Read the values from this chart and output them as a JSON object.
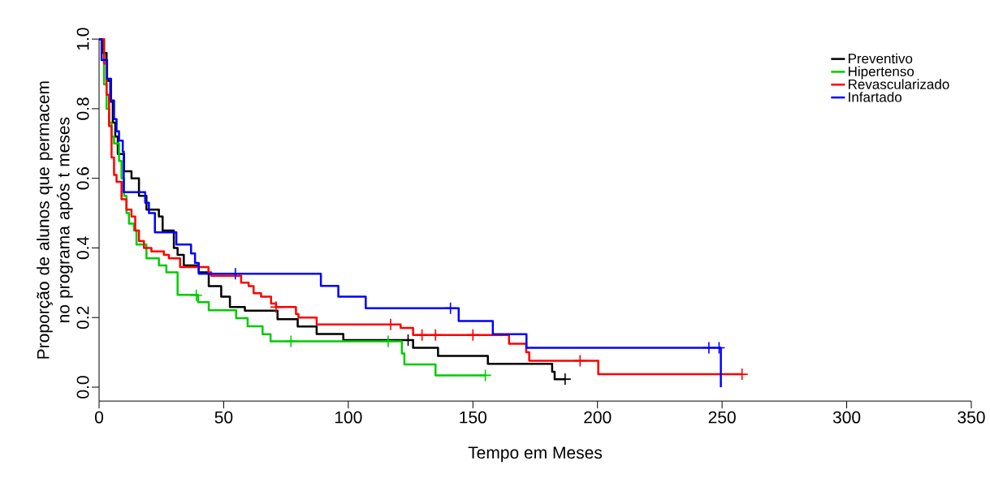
{
  "chart_data": {
    "type": "step",
    "xlabel": "Tempo em Meses",
    "ylabel": "Proporção de alunos que permacem no programa após t meses",
    "xlim": [
      0,
      350
    ],
    "xticks": [
      0,
      50,
      100,
      150,
      200,
      250,
      300,
      350
    ],
    "ylim": [
      -0.04,
      1.0
    ],
    "yticks": [
      {
        "value": 0,
        "label": "0.0"
      },
      {
        "value": 0.2,
        "label": "0.2"
      },
      {
        "value": 0.4,
        "label": "0.4"
      },
      {
        "value": 0.6,
        "label": "0.6"
      },
      {
        "value": 0.8,
        "label": "0.8"
      },
      {
        "value": 1.0,
        "label": "1.0"
      }
    ],
    "legend": "top right",
    "marker": "none",
    "series": [
      {
        "name": "Preventivo",
        "color": "#000000",
        "x": [
          0,
          1.5,
          3,
          4.5,
          5.5,
          6.5,
          7.5,
          10,
          13,
          16,
          19,
          24,
          25.5,
          30,
          31.5,
          34,
          40,
          44,
          49,
          52.5,
          58.5,
          71.6,
          79.7,
          87.3,
          98,
          126,
          136,
          156,
          181.8,
          182.8,
          187
        ],
        "values": [
          1.0,
          0.96,
          0.88,
          0.82,
          0.76,
          0.72,
          0.67,
          0.62,
          0.6,
          0.55,
          0.51,
          0.49,
          0.45,
          0.4,
          0.38,
          0.35,
          0.33,
          0.29,
          0.26,
          0.23,
          0.22,
          0.195,
          0.174,
          0.153,
          0.135,
          0.113,
          0.09,
          0.067,
          0.044,
          0.023,
          0.023
        ]
      },
      {
        "name": "Hipertenso",
        "color": "#00cc00",
        "x": [
          0,
          2,
          3,
          4,
          5,
          6,
          8,
          9,
          10,
          11,
          12,
          14,
          15,
          19,
          24,
          27,
          31.5,
          39.7,
          44,
          55,
          59.6,
          65.6,
          68.8,
          121.5,
          122.5,
          135,
          155
        ],
        "values": [
          1.0,
          0.87,
          0.8,
          0.76,
          0.72,
          0.7,
          0.65,
          0.6,
          0.55,
          0.5,
          0.47,
          0.45,
          0.41,
          0.37,
          0.35,
          0.33,
          0.265,
          0.244,
          0.221,
          0.198,
          0.175,
          0.152,
          0.132,
          0.097,
          0.065,
          0.034,
          0.034
        ]
      },
      {
        "name": "Revascularizado",
        "color": "#ff0000",
        "x": [
          0,
          2,
          3,
          4,
          5,
          6,
          7,
          9,
          11,
          13,
          14.5,
          16,
          18,
          21,
          26,
          28,
          32.5,
          43.9,
          45,
          57,
          60,
          62,
          65,
          69,
          71,
          79,
          80,
          87.3,
          121,
          126,
          164.5,
          171.4,
          172.6,
          200.3,
          258
        ],
        "values": [
          1.0,
          0.93,
          0.84,
          0.75,
          0.66,
          0.61,
          0.59,
          0.54,
          0.51,
          0.49,
          0.45,
          0.42,
          0.4,
          0.39,
          0.38,
          0.37,
          0.345,
          0.33,
          0.32,
          0.3,
          0.29,
          0.27,
          0.26,
          0.24,
          0.23,
          0.21,
          0.2,
          0.18,
          0.17,
          0.15,
          0.125,
          0.1,
          0.076,
          0.037,
          0.037
        ]
      },
      {
        "name": "Infartado",
        "color": "#0000ff",
        "x": [
          0,
          1,
          3.2,
          4.8,
          6,
          7,
          8,
          9.5,
          9.9,
          18.5,
          20,
          22.4,
          31,
          36.9,
          38.5,
          40,
          89,
          96,
          107,
          144.3,
          158,
          171.5,
          249.5
        ],
        "values": [
          1.0,
          0.94,
          0.886,
          0.824,
          0.77,
          0.735,
          0.708,
          0.677,
          0.56,
          0.53,
          0.5,
          0.445,
          0.41,
          0.384,
          0.357,
          0.326,
          0.291,
          0.26,
          0.227,
          0.19,
          0.152,
          0.113,
          0.0
        ]
      },
      {
        "type": "scatter",
        "marker": "cross",
        "color": "#000000",
        "x": [
          124,
          187
        ],
        "values": [
          0.135,
          0.023
        ]
      },
      {
        "type": "scatter",
        "marker": "cross",
        "color": "#00cc00",
        "x": [
          39,
          77,
          116,
          155
        ],
        "values": [
          0.264,
          0.132,
          0.132,
          0.034
        ]
      },
      {
        "type": "scatter",
        "marker": "cross",
        "color": "#ff0000",
        "x": [
          71,
          117,
          129.6,
          135,
          150,
          193,
          258
        ],
        "values": [
          0.23,
          0.18,
          0.15,
          0.15,
          0.15,
          0.076,
          0.037
        ]
      },
      {
        "type": "scatter",
        "marker": "cross",
        "color": "#0000ff",
        "x": [
          54.7,
          141,
          244.7,
          248.8
        ],
        "values": [
          0.326,
          0.227,
          0.113,
          0.113
        ]
      }
    ]
  }
}
